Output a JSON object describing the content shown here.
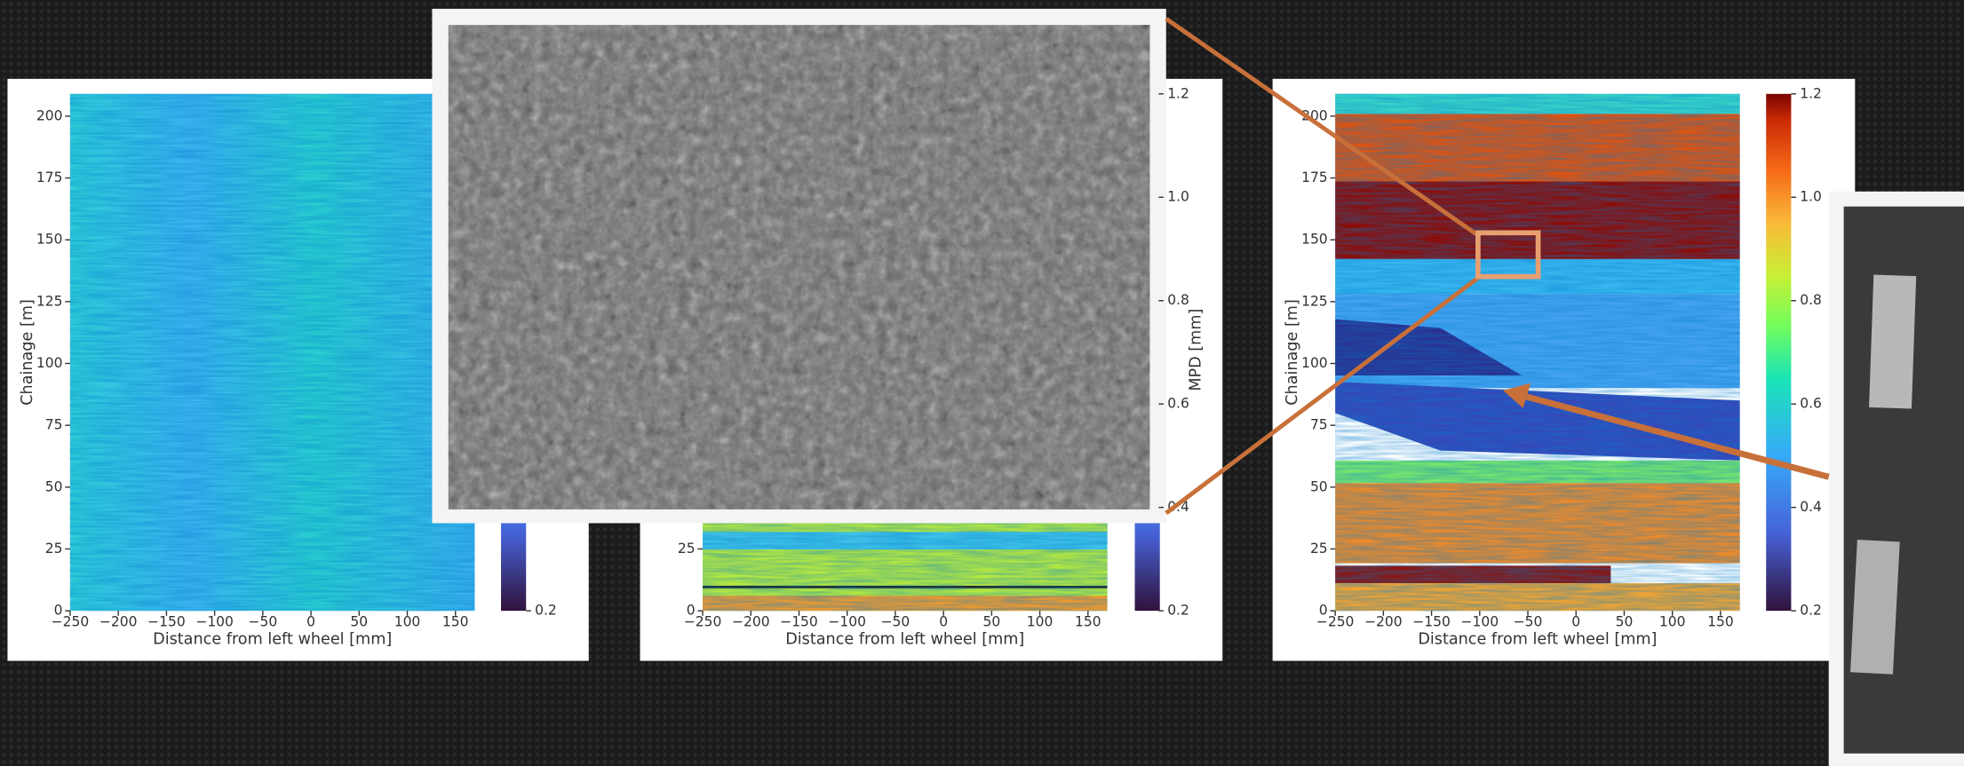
{
  "panels": [
    {
      "xlabel": "Distance from left wheel [mm]",
      "ylabel": "Chainage [m]",
      "xlim": [
        -250,
        170
      ],
      "ylim": [
        0,
        209
      ],
      "xticks": [
        {
          "value": -250,
          "label": "−250"
        },
        {
          "value": -200,
          "label": "−200"
        },
        {
          "value": -150,
          "label": "−150"
        },
        {
          "value": -100,
          "label": "−100"
        },
        {
          "value": -50,
          "label": "−50"
        },
        0,
        50,
        100,
        150
      ],
      "yticks": [
        0,
        25,
        50,
        75,
        100,
        125,
        150,
        175,
        200
      ],
      "clim": [
        0.2,
        1.2
      ],
      "cticks": [
        0.2
      ]
    },
    {
      "xlabel": "Distance from left wheel [mm]",
      "xlim": [
        -250,
        170
      ],
      "ylim": [
        0,
        209
      ],
      "xticks": [
        {
          "value": -250,
          "label": "−250"
        },
        {
          "value": -200,
          "label": "−200"
        },
        {
          "value": -150,
          "label": "−150"
        },
        {
          "value": -100,
          "label": "−100"
        },
        {
          "value": -50,
          "label": "−50"
        },
        0,
        50,
        100,
        150
      ],
      "yticks": [
        0,
        25
      ],
      "clim": [
        0.2,
        1.2
      ],
      "cticks": [
        0.2,
        0.4,
        0.6,
        0.8,
        {
          "value": 1,
          "label": "1.0"
        },
        1.2
      ],
      "clabel": "MPD [mm]"
    },
    {
      "xlabel": "Distance from left wheel [mm]",
      "ylabel": "Chainage [m]",
      "xlim": [
        -250,
        170
      ],
      "ylim": [
        0,
        209
      ],
      "xticks": [
        {
          "value": -250,
          "label": "−250"
        },
        {
          "value": -200,
          "label": "−200"
        },
        {
          "value": -150,
          "label": "−150"
        },
        {
          "value": -100,
          "label": "−100"
        },
        {
          "value": -50,
          "label": "−50"
        },
        0,
        50,
        100,
        150
      ],
      "yticks": [
        0,
        25,
        50,
        75,
        100,
        125,
        150,
        175,
        200
      ],
      "clim": [
        0.2,
        1.2
      ],
      "cticks": [
        0.2,
        0.4,
        0.6,
        0.8,
        {
          "value": 1,
          "label": "1.0"
        },
        1.2
      ]
    }
  ]
}
